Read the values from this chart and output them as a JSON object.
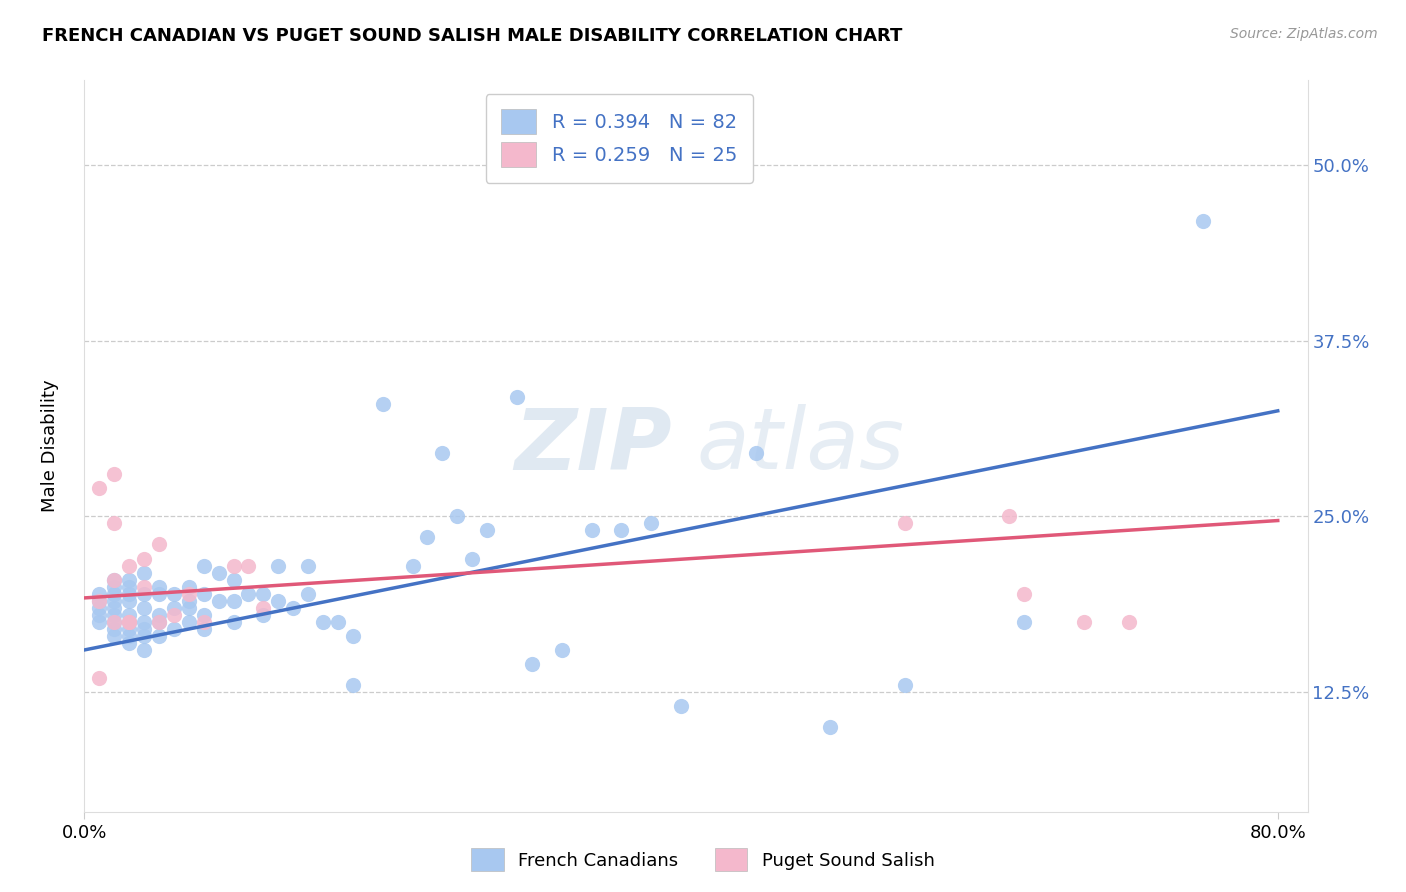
{
  "title": "FRENCH CANADIAN VS PUGET SOUND SALISH MALE DISABILITY CORRELATION CHART",
  "source": "Source: ZipAtlas.com",
  "ylabel": "Male Disability",
  "yticks": [
    "12.5%",
    "25.0%",
    "37.5%",
    "50.0%"
  ],
  "ytick_vals": [
    0.125,
    0.25,
    0.375,
    0.5
  ],
  "xlim": [
    0.0,
    0.82
  ],
  "ylim": [
    0.04,
    0.56
  ],
  "legend_r1_r": "R = 0.394",
  "legend_r1_n": "N = 82",
  "legend_r2_r": "R = 0.259",
  "legend_r2_n": "N = 25",
  "blue_color": "#a8c8f0",
  "pink_color": "#f4b8cc",
  "blue_line_color": "#4472c4",
  "pink_line_color": "#e05878",
  "watermark_zip": "ZIP",
  "watermark_atlas": "atlas",
  "french_canadians_x": [
    0.01,
    0.01,
    0.01,
    0.01,
    0.01,
    0.02,
    0.02,
    0.02,
    0.02,
    0.02,
    0.02,
    0.02,
    0.02,
    0.02,
    0.03,
    0.03,
    0.03,
    0.03,
    0.03,
    0.03,
    0.03,
    0.03,
    0.03,
    0.04,
    0.04,
    0.04,
    0.04,
    0.04,
    0.04,
    0.04,
    0.05,
    0.05,
    0.05,
    0.05,
    0.05,
    0.06,
    0.06,
    0.06,
    0.07,
    0.07,
    0.07,
    0.07,
    0.08,
    0.08,
    0.08,
    0.08,
    0.09,
    0.09,
    0.1,
    0.1,
    0.1,
    0.11,
    0.12,
    0.12,
    0.13,
    0.13,
    0.14,
    0.15,
    0.15,
    0.16,
    0.17,
    0.18,
    0.18,
    0.2,
    0.22,
    0.23,
    0.24,
    0.25,
    0.26,
    0.27,
    0.29,
    0.3,
    0.32,
    0.34,
    0.36,
    0.38,
    0.4,
    0.45,
    0.5,
    0.55,
    0.63,
    0.75
  ],
  "french_canadians_y": [
    0.175,
    0.18,
    0.185,
    0.19,
    0.195,
    0.165,
    0.17,
    0.175,
    0.18,
    0.185,
    0.19,
    0.195,
    0.2,
    0.205,
    0.16,
    0.165,
    0.17,
    0.175,
    0.18,
    0.19,
    0.195,
    0.2,
    0.205,
    0.155,
    0.165,
    0.17,
    0.175,
    0.185,
    0.195,
    0.21,
    0.165,
    0.175,
    0.18,
    0.195,
    0.2,
    0.17,
    0.185,
    0.195,
    0.175,
    0.185,
    0.19,
    0.2,
    0.17,
    0.18,
    0.195,
    0.215,
    0.19,
    0.21,
    0.175,
    0.19,
    0.205,
    0.195,
    0.18,
    0.195,
    0.19,
    0.215,
    0.185,
    0.195,
    0.215,
    0.175,
    0.175,
    0.13,
    0.165,
    0.33,
    0.215,
    0.235,
    0.295,
    0.25,
    0.22,
    0.24,
    0.335,
    0.145,
    0.155,
    0.24,
    0.24,
    0.245,
    0.115,
    0.295,
    0.1,
    0.13,
    0.175,
    0.46
  ],
  "puget_sound_x": [
    0.01,
    0.01,
    0.01,
    0.02,
    0.02,
    0.02,
    0.02,
    0.03,
    0.03,
    0.03,
    0.04,
    0.04,
    0.05,
    0.05,
    0.06,
    0.07,
    0.08,
    0.1,
    0.11,
    0.12,
    0.55,
    0.62,
    0.63,
    0.67,
    0.7
  ],
  "puget_sound_y": [
    0.135,
    0.19,
    0.27,
    0.175,
    0.205,
    0.245,
    0.28,
    0.175,
    0.215,
    0.175,
    0.2,
    0.22,
    0.175,
    0.23,
    0.18,
    0.195,
    0.175,
    0.215,
    0.215,
    0.185,
    0.245,
    0.25,
    0.195,
    0.175,
    0.175
  ],
  "blue_line_x0": 0.0,
  "blue_line_x1": 0.8,
  "blue_line_y0": 0.155,
  "blue_line_y1": 0.325,
  "pink_line_x0": 0.0,
  "pink_line_x1": 0.8,
  "pink_line_y0": 0.192,
  "pink_line_y1": 0.247
}
